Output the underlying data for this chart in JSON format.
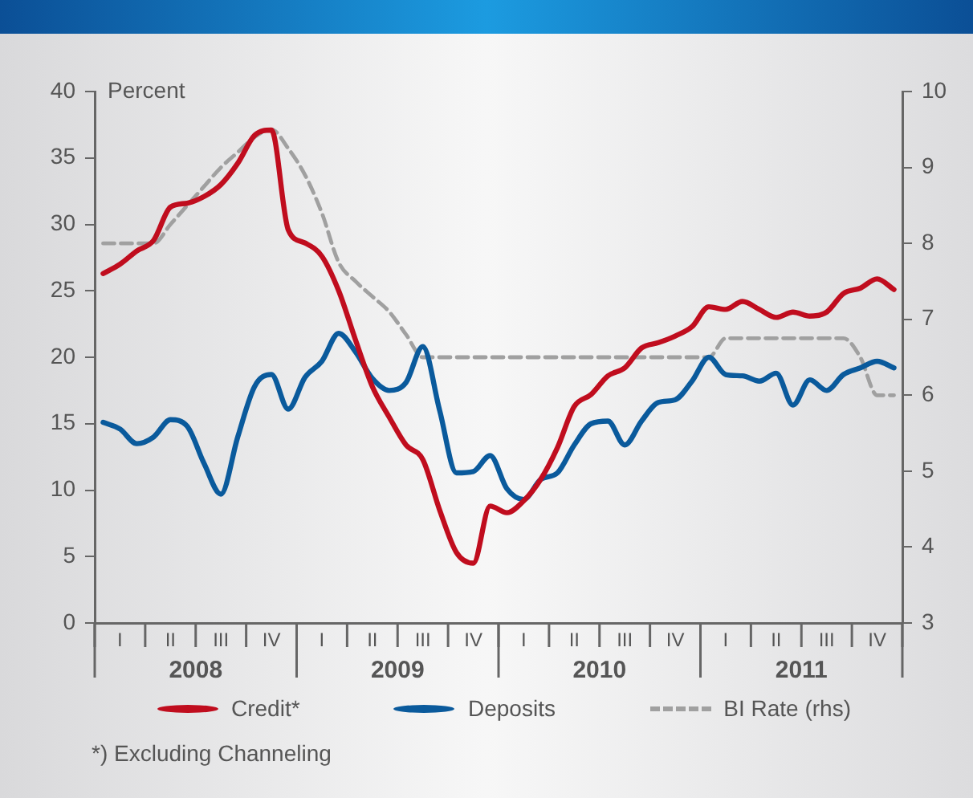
{
  "chart_data": {
    "type": "line",
    "ylabel": "Percent",
    "annotations": [
      "*) Excluding Channeling"
    ],
    "categories": [
      null,
      "I",
      null,
      null,
      "II",
      null,
      null,
      "III",
      null,
      null,
      "IV",
      null,
      null,
      "I",
      null,
      null,
      "II",
      null,
      null,
      "III",
      null,
      null,
      "IV",
      null,
      null,
      "I",
      null,
      null,
      "II",
      null,
      null,
      "III",
      null,
      null,
      "IV",
      null,
      null,
      "I",
      null,
      null,
      "II",
      null,
      null,
      "III",
      null,
      null,
      "IV",
      null
    ],
    "x2lim": [
      2008,
      2012
    ],
    "x2ticks": [
      {
        "value": 2008,
        "label": null
      },
      {
        "value": 2008.5,
        "label": "2008"
      },
      {
        "value": 2009,
        "label": null
      },
      {
        "value": 2009.5,
        "label": "2009"
      },
      {
        "value": 2010,
        "label": null
      },
      {
        "value": 2010.5,
        "label": "2010"
      },
      {
        "value": 2011,
        "label": null
      },
      {
        "value": 2011.5,
        "label": "2011"
      },
      {
        "value": 2012,
        "label": null
      }
    ],
    "ylim": [
      0,
      40
    ],
    "yticks": [
      0,
      5,
      10,
      15,
      20,
      25,
      30,
      35,
      40
    ],
    "y2lim": [
      3,
      10
    ],
    "y2ticks": [
      3,
      4,
      5,
      6,
      7,
      8,
      9,
      10
    ],
    "grid": false,
    "legend": "bottom",
    "marker": "none",
    "line_style": "solid",
    "series": [
      {
        "name": "Credit*",
        "color": "#c00d1e",
        "values": [
          26.3,
          27.0,
          28.0,
          28.8,
          31.3,
          31.6,
          32.1,
          33.0,
          34.6,
          36.7,
          37.1,
          29.6,
          28.6,
          27.6,
          25.0,
          21.3,
          17.8,
          15.5,
          13.4,
          12.3,
          8.5,
          5.3,
          4.5,
          8.8,
          8.3,
          9.2,
          10.8,
          13.2,
          16.3,
          17.2,
          18.6,
          19.2,
          20.7,
          21.1,
          21.6,
          22.3,
          23.8,
          23.6,
          24.2,
          23.6,
          23.0,
          23.4,
          23.1,
          23.4,
          24.8,
          25.2,
          25.9,
          25.1
        ]
      },
      {
        "name": "Deposits",
        "color": "#0a5a9c",
        "values": [
          15.1,
          14.6,
          13.5,
          14.0,
          15.3,
          14.8,
          12.0,
          9.7,
          14.0,
          17.8,
          18.7,
          16.1,
          18.5,
          19.7,
          21.8,
          20.4,
          18.4,
          17.5,
          18.1,
          20.8,
          16.0,
          11.3,
          11.4,
          12.6,
          10.1,
          9.3,
          10.8,
          11.3,
          13.4,
          15.0,
          15.2,
          13.4,
          15.2,
          16.6,
          16.8,
          18.2,
          20.0,
          18.7,
          18.6,
          18.2,
          18.8,
          16.4,
          18.3,
          17.5,
          18.7,
          19.2,
          19.7,
          19.2
        ]
      },
      {
        "name": "BI Rate (rhs)",
        "color": "#a0a0a0",
        "axis": "y2",
        "line_style": "dashed",
        "values": [
          8.0,
          8.0,
          8.0,
          8.0,
          8.25,
          8.5,
          8.75,
          9.0,
          9.2,
          9.4,
          9.5,
          9.25,
          8.9,
          8.4,
          7.75,
          7.5,
          7.3,
          7.1,
          6.8,
          6.5,
          6.5,
          6.5,
          6.5,
          6.5,
          6.5,
          6.5,
          6.5,
          6.5,
          6.5,
          6.5,
          6.5,
          6.5,
          6.5,
          6.5,
          6.5,
          6.5,
          6.5,
          6.75,
          6.75,
          6.75,
          6.75,
          6.75,
          6.75,
          6.75,
          6.75,
          6.5,
          6.0,
          6.0
        ]
      }
    ]
  }
}
